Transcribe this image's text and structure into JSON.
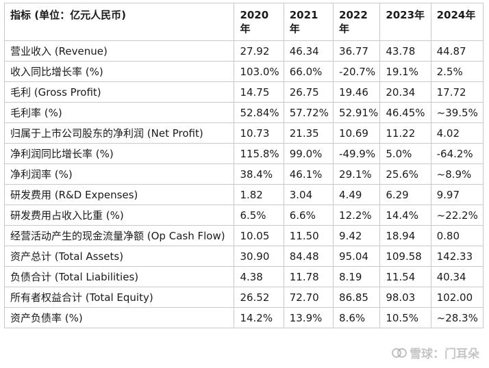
{
  "table": {
    "headers": [
      "指标 (单位：亿元人民币)",
      "2020年",
      "2021年",
      "2022年",
      "2023年",
      "2024年"
    ],
    "rows": [
      [
        "营业收入 (Revenue)",
        "27.92",
        "46.34",
        "36.77",
        "43.78",
        "44.87"
      ],
      [
        "收入同比增长率 (%)",
        "103.0%",
        "66.0%",
        "-20.7%",
        "19.1%",
        "2.5%"
      ],
      [
        "毛利 (Gross Profit)",
        "14.75",
        "26.75",
        "19.46",
        "20.34",
        "17.72"
      ],
      [
        "毛利率 (%)",
        "52.84%",
        "57.72%",
        "52.91%",
        "46.45%",
        "~39.5%"
      ],
      [
        "归属于上市公司股东的净利润 (Net Profit)",
        "10.73",
        "21.35",
        "10.69",
        "11.22",
        "4.02"
      ],
      [
        "净利润同比增长率 (%)",
        "115.8%",
        "99.0%",
        "-49.9%",
        "5.0%",
        "-64.2%"
      ],
      [
        "净利润率 (%)",
        "38.4%",
        "46.1%",
        "29.1%",
        "25.6%",
        "~8.9%"
      ],
      [
        "研发费用 (R&D Expenses)",
        "1.82",
        "3.04",
        "4.49",
        "6.29",
        "9.97"
      ],
      [
        "研发费用占收入比重 (%)",
        "6.5%",
        "6.6%",
        "12.2%",
        "14.4%",
        "~22.2%"
      ],
      [
        "经营活动产生的现金流量净额 (Op Cash Flow)",
        "10.05",
        "11.50",
        "9.42",
        "18.94",
        "0.80"
      ],
      [
        "资产总计 (Total Assets)",
        "30.90",
        "84.48",
        "95.04",
        "109.58",
        "142.33"
      ],
      [
        "负债合计 (Total Liabilities)",
        "4.38",
        "11.78",
        "8.19",
        "11.54",
        "40.34"
      ],
      [
        "所有者权益合计 (Total Equity)",
        "26.52",
        "72.70",
        "86.85",
        "98.03",
        "102.00"
      ],
      [
        "资产负债率 (%)",
        "14.2%",
        "13.9%",
        "8.6%",
        "10.5%",
        "~28.3%"
      ]
    ]
  },
  "watermark": {
    "text": "雪球：门耳朵",
    "icon": "snowball-logo-icon"
  }
}
